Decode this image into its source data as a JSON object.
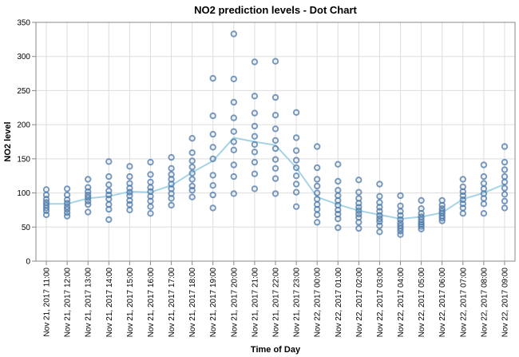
{
  "chart_data": {
    "type": "scatter",
    "title": "NO2 prediction levels - Dot Chart",
    "xlabel": "Time of Day",
    "ylabel": "NO2 level",
    "ylim": [
      0,
      350
    ],
    "yticks": [
      0,
      50,
      100,
      150,
      200,
      250,
      300,
      350
    ],
    "grid": true,
    "colors": {
      "dots": "#4c78a8",
      "line": "#a6d3e6"
    },
    "categories": [
      "Nov 21, 2017 11:00",
      "Nov 21, 2017 12:00",
      "Nov 21, 2017 13:00",
      "Nov 21, 2017 14:00",
      "Nov 21, 2017 15:00",
      "Nov 21, 2017 16:00",
      "Nov 21, 2017 17:00",
      "Nov 21, 2017 18:00",
      "Nov 21, 2017 19:00",
      "Nov 21, 2017 20:00",
      "Nov 21, 2017 21:00",
      "Nov 21, 2017 22:00",
      "Nov 21, 2017 23:00",
      "Nov 22, 2017 00:00",
      "Nov 22, 2017 01:00",
      "Nov 22, 2017 02:00",
      "Nov 22, 2017 03:00",
      "Nov 22, 2017 04:00",
      "Nov 22, 2017 05:00",
      "Nov 22, 2017 06:00",
      "Nov 22, 2017 07:00",
      "Nov 22, 2017 08:00",
      "Nov 22, 2017 09:00"
    ],
    "points": [
      [
        105,
        97,
        91,
        86,
        82,
        78,
        74,
        68
      ],
      [
        106,
        97,
        90,
        85,
        80,
        76,
        71,
        66
      ],
      [
        120,
        108,
        102,
        97,
        93,
        88,
        83,
        72
      ],
      [
        146,
        124,
        112,
        103,
        97,
        91,
        83,
        76,
        61
      ],
      [
        139,
        124,
        114,
        107,
        101,
        96,
        89,
        83,
        75
      ],
      [
        145,
        127,
        116,
        108,
        102,
        95,
        88,
        80,
        70
      ],
      [
        152,
        136,
        127,
        120,
        113,
        106,
        99,
        92,
        82
      ],
      [
        180,
        159,
        147,
        138,
        129,
        120,
        110,
        104,
        94
      ],
      [
        268,
        213,
        186,
        167,
        150,
        126,
        111,
        97,
        78
      ],
      [
        333,
        267,
        233,
        210,
        190,
        175,
        163,
        141,
        124,
        99
      ],
      [
        292,
        242,
        217,
        198,
        183,
        171,
        160,
        145,
        128,
        106
      ],
      [
        293,
        240,
        214,
        194,
        177,
        165,
        149,
        136,
        121,
        99
      ],
      [
        218,
        181,
        162,
        148,
        137,
        125,
        113,
        101,
        80
      ],
      [
        168,
        137,
        120,
        110,
        100,
        91,
        83,
        76,
        68,
        57
      ],
      [
        142,
        117,
        104,
        96,
        89,
        82,
        75,
        69,
        62,
        49
      ],
      [
        119,
        101,
        92,
        85,
        79,
        74,
        69,
        64,
        57,
        48
      ],
      [
        113,
        95,
        86,
        79,
        73,
        67,
        62,
        58,
        52,
        43
      ],
      [
        96,
        81,
        73,
        67,
        61,
        56,
        52,
        48,
        44,
        39
      ],
      [
        89,
        77,
        70,
        65,
        61,
        57,
        54,
        51,
        47
      ],
      [
        89,
        82,
        77,
        73,
        70,
        66,
        63,
        59
      ],
      [
        120,
        109,
        102,
        96,
        90,
        84,
        78,
        70
      ],
      [
        141,
        124,
        114,
        106,
        99,
        92,
        84,
        70
      ],
      [
        168,
        145,
        134,
        124,
        116,
        107,
        98,
        88,
        78
      ]
    ],
    "mean_line": [
      84,
      84,
      92,
      95,
      102,
      101,
      111,
      130,
      147,
      181,
      175,
      170,
      137,
      94,
      83,
      74,
      68,
      62,
      65,
      71,
      91,
      100,
      113
    ]
  }
}
